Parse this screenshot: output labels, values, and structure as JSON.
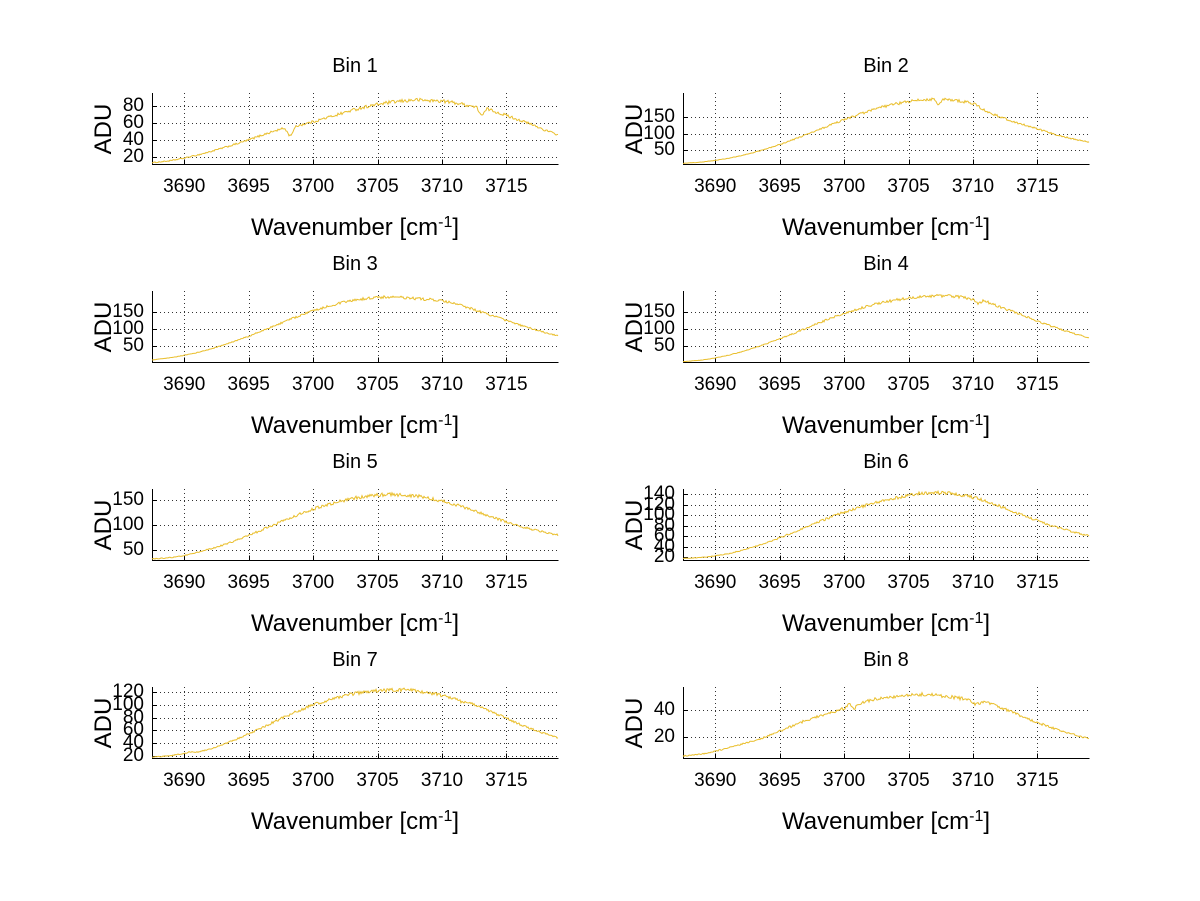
{
  "figure": {
    "background": "#FFFFFF",
    "axis_color": "#000000",
    "grid_color": "#333333",
    "text_color": "#000000",
    "line_color": "#E9BE2B",
    "ylabel": "ADU",
    "xlabel_parts": {
      "pre": "Wavenumber [cm",
      "sup": "-1",
      "post": "]"
    }
  },
  "chart_data": [
    {
      "type": "line",
      "title": "Bin 1",
      "xlabel": "Wavenumber [cm^-1]",
      "ylabel": "ADU",
      "xlim": [
        3687.5,
        3719
      ],
      "ylim": [
        11.5,
        95.5
      ],
      "grid": true,
      "legend": false,
      "xticks": [
        3690,
        3695,
        3700,
        3705,
        3710,
        3715
      ],
      "yticks": [
        20,
        40,
        60,
        80
      ],
      "x": [
        3687.5,
        3689,
        3690,
        3691,
        3692,
        3693,
        3694,
        3695,
        3696,
        3697,
        3697.8,
        3698.2,
        3698.7,
        3700,
        3701,
        3702,
        3703,
        3704,
        3705,
        3706,
        3707,
        3708,
        3709,
        3710,
        3711,
        3712,
        3712.7,
        3713.1,
        3713.5,
        3714,
        3715,
        3716,
        3717,
        3718,
        3719
      ],
      "y": [
        13,
        15.5,
        18.5,
        22,
        26,
        30.5,
        35,
        40,
        45.5,
        50.5,
        54,
        44,
        56.5,
        61.5,
        66,
        70.5,
        75,
        79,
        82,
        84.5,
        86,
        87.5,
        86.5,
        86,
        84,
        81,
        78.5,
        68,
        77,
        74,
        69,
        63.5,
        58,
        51.5,
        46
      ]
    },
    {
      "type": "line",
      "title": "Bin 2",
      "xlabel": "Wavenumber [cm^-1]",
      "ylabel": "ADU",
      "xlim": [
        3687.5,
        3719
      ],
      "ylim": [
        8,
        223
      ],
      "grid": true,
      "legend": false,
      "xticks": [
        3690,
        3695,
        3700,
        3705,
        3710,
        3715
      ],
      "yticks": [
        50,
        100,
        150
      ],
      "x": [
        3687.5,
        3689,
        3690,
        3691,
        3692,
        3693,
        3694,
        3695,
        3696,
        3697,
        3698,
        3699,
        3700,
        3701,
        3702,
        3703,
        3704,
        3705,
        3706,
        3707,
        3707.3,
        3707.7,
        3708,
        3709,
        3710,
        3711,
        3712,
        3713,
        3714,
        3715,
        3716,
        3717,
        3718,
        3719
      ],
      "y": [
        10,
        14,
        19,
        25,
        33,
        43,
        54,
        67,
        81,
        96,
        111,
        127,
        142,
        156,
        169,
        181,
        190,
        197,
        202,
        205,
        185,
        204,
        203,
        199,
        192,
        168,
        152,
        138,
        126,
        114,
        102,
        91,
        82,
        74
      ]
    },
    {
      "type": "line",
      "title": "Bin 3",
      "xlabel": "Wavenumber [cm^-1]",
      "ylabel": "ADU",
      "xlim": [
        3687.5,
        3719
      ],
      "ylim": [
        2,
        214
      ],
      "grid": true,
      "legend": false,
      "xticks": [
        3690,
        3695,
        3700,
        3705,
        3710,
        3715
      ],
      "yticks": [
        50,
        100,
        150
      ],
      "x": [
        3687.5,
        3689,
        3690,
        3691,
        3692,
        3693,
        3694,
        3695,
        3696,
        3697,
        3698,
        3699,
        3700,
        3701,
        3702,
        3703,
        3704,
        3705,
        3706,
        3707,
        3708,
        3709,
        3710,
        3711,
        3712,
        3713,
        3714,
        3715,
        3716,
        3717,
        3718,
        3719
      ],
      "y": [
        8,
        15,
        22,
        30,
        40,
        52,
        65,
        79,
        94,
        110,
        126,
        141,
        155,
        167,
        177,
        185,
        191,
        195,
        196,
        194,
        191,
        189,
        184,
        176,
        165,
        152,
        139,
        126,
        113,
        101,
        90,
        80
      ]
    },
    {
      "type": "line",
      "title": "Bin 4",
      "xlabel": "Wavenumber [cm^-1]",
      "ylabel": "ADU",
      "xlim": [
        3687.5,
        3719
      ],
      "ylim": [
        2,
        214
      ],
      "grid": true,
      "legend": false,
      "xticks": [
        3690,
        3695,
        3700,
        3705,
        3710,
        3715
      ],
      "yticks": [
        50,
        100,
        150
      ],
      "x": [
        3687.5,
        3689,
        3690,
        3691,
        3692,
        3693,
        3694,
        3695,
        3696,
        3697,
        3698,
        3699,
        3700,
        3701,
        3702,
        3703,
        3704,
        3705,
        3706,
        3707,
        3708,
        3709,
        3710,
        3710.4,
        3710.8,
        3711.3,
        3712,
        3713,
        3714,
        3715,
        3716,
        3717,
        3718,
        3719
      ],
      "y": [
        3,
        8,
        14,
        22,
        32,
        44,
        57,
        71,
        86,
        102,
        118,
        133,
        147,
        160,
        171,
        180,
        187,
        192,
        196,
        199,
        200,
        196,
        190,
        176,
        186,
        178,
        168,
        154,
        139,
        124,
        110,
        97,
        85,
        75
      ]
    },
    {
      "type": "line",
      "title": "Bin 5",
      "xlabel": "Wavenumber [cm^-1]",
      "ylabel": "ADU",
      "xlim": [
        3687.5,
        3719
      ],
      "ylim": [
        30,
        172
      ],
      "grid": true,
      "legend": false,
      "xticks": [
        3690,
        3695,
        3700,
        3705,
        3710,
        3715
      ],
      "yticks": [
        50,
        100,
        150
      ],
      "x": [
        3687.5,
        3689,
        3690,
        3691,
        3692,
        3693,
        3694,
        3695,
        3696,
        3697,
        3698,
        3699,
        3700,
        3701,
        3702,
        3703,
        3704,
        3705,
        3706,
        3707,
        3708,
        3709,
        3710,
        3711,
        3712,
        3713,
        3714,
        3715,
        3716,
        3717,
        3718,
        3719
      ],
      "y": [
        32,
        35,
        39,
        45,
        52,
        60,
        69,
        79,
        90,
        101,
        112,
        122,
        132,
        140,
        147,
        153,
        157,
        160,
        161,
        160,
        158,
        154,
        148,
        141,
        133,
        124,
        115,
        106,
        98,
        91,
        85,
        80
      ]
    },
    {
      "type": "line",
      "title": "Bin 6",
      "xlabel": "Wavenumber [cm^-1]",
      "ylabel": "ADU",
      "xlim": [
        3687.5,
        3719
      ],
      "ylim": [
        15,
        150
      ],
      "grid": true,
      "legend": false,
      "xticks": [
        3690,
        3695,
        3700,
        3705,
        3710,
        3715
      ],
      "yticks": [
        20,
        40,
        60,
        80,
        100,
        120,
        140
      ],
      "x": [
        3687.5,
        3689,
        3690,
        3691,
        3692,
        3693,
        3694,
        3695,
        3696,
        3697,
        3698,
        3699,
        3700,
        3701,
        3702,
        3703,
        3704,
        3705,
        3706,
        3707,
        3708,
        3709,
        3710,
        3711,
        3712,
        3713,
        3714,
        3715,
        3716,
        3717,
        3718,
        3719
      ],
      "y": [
        18,
        20,
        23,
        27,
        33,
        40,
        48,
        57,
        67,
        77,
        87,
        97,
        106,
        114,
        121,
        128,
        133,
        138,
        142,
        143,
        142,
        139,
        134,
        127,
        118,
        108,
        99,
        90,
        81,
        74,
        67,
        61
      ]
    },
    {
      "type": "line",
      "title": "Bin 7",
      "xlabel": "Wavenumber [cm^-1]",
      "ylabel": "ADU",
      "xlim": [
        3687.5,
        3719
      ],
      "ylim": [
        17,
        128
      ],
      "grid": true,
      "legend": false,
      "xticks": [
        3690,
        3695,
        3700,
        3705,
        3710,
        3715
      ],
      "yticks": [
        20,
        40,
        60,
        80,
        100,
        120
      ],
      "x": [
        3687.5,
        3689,
        3690,
        3690.5,
        3691,
        3692,
        3693,
        3694,
        3695,
        3696,
        3697,
        3698,
        3699,
        3700,
        3701,
        3702,
        3703,
        3704,
        3705,
        3706,
        3707,
        3708,
        3709,
        3710,
        3711,
        3711.5,
        3712,
        3713,
        3714,
        3715,
        3716,
        3717,
        3718,
        3719
      ],
      "y": [
        18,
        21,
        24,
        27,
        26,
        31,
        38,
        46,
        55,
        64,
        74,
        83,
        92,
        100,
        106,
        112,
        117,
        120,
        122,
        123,
        124,
        122,
        119,
        115,
        110,
        105,
        104,
        97,
        88,
        79,
        70,
        62,
        55,
        49
      ]
    },
    {
      "type": "line",
      "title": "Bin 8",
      "xlabel": "Wavenumber [cm^-1]",
      "ylabel": "ADU",
      "xlim": [
        3687.5,
        3719
      ],
      "ylim": [
        4,
        57
      ],
      "grid": true,
      "legend": false,
      "xticks": [
        3690,
        3695,
        3700,
        3705,
        3710,
        3715
      ],
      "yticks": [
        20,
        40
      ],
      "x": [
        3687.5,
        3689,
        3690,
        3691,
        3692,
        3693,
        3694,
        3695,
        3696,
        3697,
        3698,
        3699,
        3700,
        3700.4,
        3700.8,
        3701.3,
        3702,
        3703,
        3704,
        3705,
        3706,
        3707,
        3708,
        3709,
        3709.7,
        3710.2,
        3710.7,
        3711.2,
        3712,
        3713,
        3714,
        3715,
        3716,
        3717,
        3718,
        3719
      ],
      "y": [
        5.5,
        7,
        9,
        11.5,
        14,
        17,
        20,
        24,
        28,
        32,
        35,
        38,
        41,
        44,
        41,
        45,
        47,
        49,
        50,
        51,
        51.5,
        51,
        50,
        48.5,
        47.5,
        43.5,
        46,
        45,
        42,
        38.5,
        34.5,
        30.5,
        27,
        24,
        21,
        18.5
      ]
    }
  ]
}
